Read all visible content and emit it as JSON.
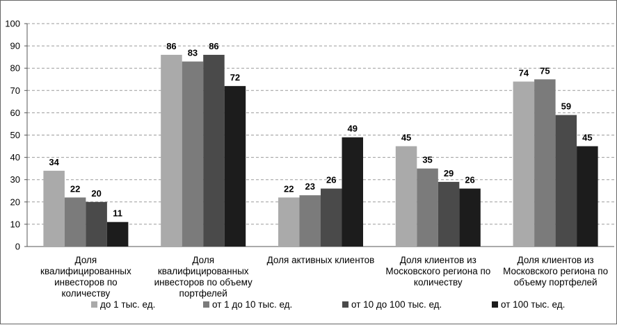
{
  "chart_data": {
    "type": "bar",
    "categories": [
      [
        "Доля",
        "квалифицированных",
        "инвесторов по",
        "количеству"
      ],
      [
        "Доля",
        "квалифицированных",
        "инвесторов по объему",
        "портфелей"
      ],
      [
        "Доля активных клиентов"
      ],
      [
        "Доля клиентов из",
        "Московского региона по",
        "количеству"
      ],
      [
        "Доля клиентов из",
        "Московского региона по",
        "объему портфелей"
      ]
    ],
    "series": [
      {
        "name": "до 1 тыс. ед.",
        "color": "#aaaaaa",
        "values": [
          34,
          86,
          22,
          45,
          74
        ]
      },
      {
        "name": "от 1 до 10 тыс. ед.",
        "color": "#7b7b7b",
        "values": [
          22,
          83,
          23,
          35,
          75
        ]
      },
      {
        "name": "от 10 до 100 тыс. ед.",
        "color": "#4a4a4a",
        "values": [
          20,
          86,
          26,
          29,
          59
        ]
      },
      {
        "name": "от 100 тыс. ед.",
        "color": "#1c1c1c",
        "values": [
          11,
          72,
          49,
          26,
          45
        ]
      }
    ],
    "data_labels": [
      [
        34,
        86,
        22,
        45,
        74
      ],
      [
        22,
        83,
        23,
        35,
        75
      ],
      [
        20,
        86,
        26,
        29,
        59
      ],
      [
        11,
        72,
        49,
        26,
        45
      ]
    ],
    "ylim": [
      0,
      100
    ],
    "yticks": [
      "0",
      "10",
      "20",
      "30",
      "40",
      "50",
      "60",
      "70",
      "80",
      "90",
      "100"
    ],
    "grid": true,
    "legend_position": "bottom"
  }
}
